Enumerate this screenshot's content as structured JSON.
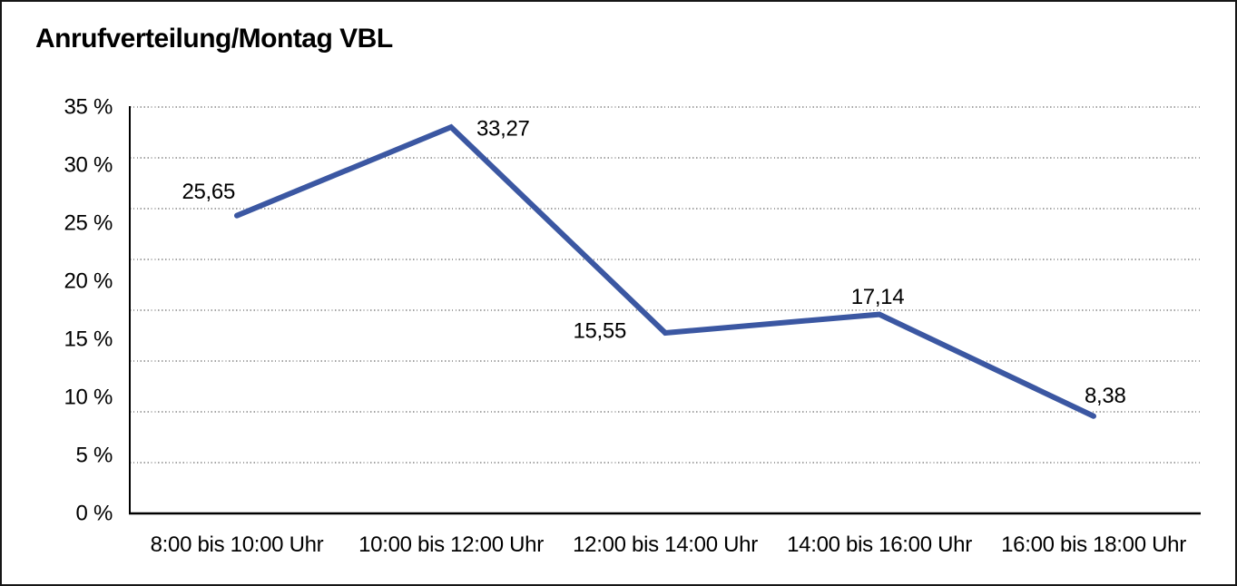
{
  "frame": {
    "background": "#ffffff",
    "border_color": "#161616"
  },
  "chart_data": {
    "type": "line",
    "title": "Anrufverteilung/Montag VBL",
    "categories": [
      "8:00 bis 10:00 Uhr",
      "10:00 bis 12:00 Uhr",
      "12:00 bis 14:00 Uhr",
      "14:00 bis 16:00 Uhr",
      "16:00 bis 18:00 Uhr"
    ],
    "series": [
      {
        "values": [
          25.65,
          33.27,
          15.55,
          17.14,
          8.38
        ],
        "labels": [
          "25,65",
          "33,27",
          "15,55",
          "17,14",
          "8,38"
        ],
        "color": "#3B57A2"
      }
    ],
    "xlabel": "",
    "ylabel": "",
    "y_ticks": [
      "0 %",
      "5 %",
      "10 %",
      "15 %",
      "20 %",
      "25 %",
      "30 %",
      "35 %"
    ],
    "ylim": [
      0,
      35
    ],
    "grid": "horizontal-dotted",
    "grid_divisions": 8,
    "legend": "none",
    "line_width": 6,
    "axis_color": "#000000",
    "gridline_color": "#4a4a4a",
    "text_color": "#000000"
  }
}
